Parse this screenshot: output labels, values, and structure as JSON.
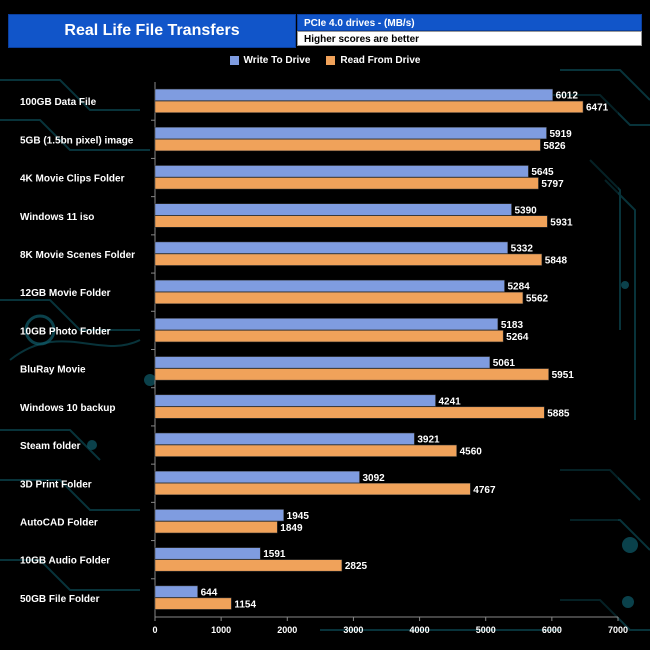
{
  "header": {
    "title": "Real Life File Transfers",
    "subtitle": "PCIe 4.0 drives - (MB/s)",
    "note": "Higher scores are better"
  },
  "colors": {
    "write": "#7f9ce0",
    "read": "#f0a25a",
    "title_bg": "#1155c9",
    "circuit": "#0f5d6b"
  },
  "chart_data": {
    "type": "bar",
    "orientation": "horizontal",
    "title": "Real Life File Transfers",
    "subtitle": "PCIe 4.0 drives - (MB/s)",
    "xlabel": "",
    "ylabel": "",
    "xlim": [
      0,
      7000
    ],
    "xticks": [
      0,
      1000,
      2000,
      3000,
      4000,
      5000,
      6000,
      7000
    ],
    "legend_position": "top-center",
    "categories": [
      "100GB Data File",
      "5GB (1.5bn pixel) image",
      "4K Movie Clips Folder",
      "Windows 11 iso",
      "8K Movie Scenes Folder",
      "12GB Movie Folder",
      "10GB Photo Folder",
      "BluRay Movie",
      "Windows 10 backup",
      "Steam folder",
      "3D Print Folder",
      "AutoCAD Folder",
      "10GB Audio Folder",
      "50GB File Folder"
    ],
    "series": [
      {
        "name": "Write To  Drive",
        "color": "#7f9ce0",
        "values": [
          6012,
          5919,
          5645,
          5390,
          5332,
          5284,
          5183,
          5061,
          4241,
          3921,
          3092,
          1945,
          1591,
          644
        ]
      },
      {
        "name": "Read From  Drive",
        "color": "#f0a25a",
        "values": [
          6471,
          5826,
          5797,
          5931,
          5848,
          5562,
          5264,
          5951,
          5885,
          4560,
          4767,
          1849,
          2825,
          1154
        ]
      }
    ]
  }
}
